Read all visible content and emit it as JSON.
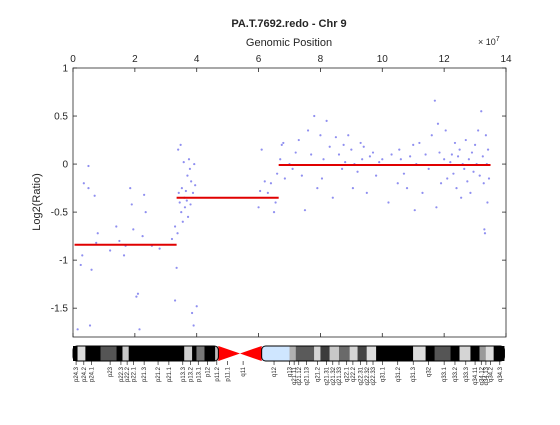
{
  "chart_data": {
    "type": "scatter",
    "title": "PA.T.7692.redo - Chr 9",
    "xlabel": "Genomic Position",
    "ylabel": "Log2(Ratio)",
    "x_exponent_label": "× 10",
    "x_exponent_power": "7",
    "xlim": [
      0,
      14
    ],
    "ylim": [
      -1.8,
      1
    ],
    "xticks": [
      0,
      2,
      4,
      6,
      8,
      10,
      12,
      14
    ],
    "yticks": [
      1,
      0.5,
      0,
      -0.5,
      -1,
      -1.5
    ],
    "ytick_labels": [
      "1",
      "0.5",
      "0",
      "-0.5",
      "-1",
      "-1.5"
    ],
    "colors": {
      "points": "#8f8ff0",
      "segments": "#e00000",
      "axis": "#262626"
    },
    "segments": [
      {
        "x0": 0.05,
        "x1": 3.35,
        "y": -0.84
      },
      {
        "x0": 3.35,
        "x1": 6.65,
        "y": -0.35
      },
      {
        "x0": 6.65,
        "x1": 13.5,
        "y": -0.01
      }
    ],
    "points": [
      [
        0.15,
        -1.72
      ],
      [
        0.25,
        -1.05
      ],
      [
        0.3,
        -0.95
      ],
      [
        0.35,
        -0.2
      ],
      [
        0.5,
        -0.25
      ],
      [
        0.5,
        -0.02
      ],
      [
        0.55,
        -1.68
      ],
      [
        0.6,
        -1.1
      ],
      [
        0.7,
        -0.33
      ],
      [
        0.75,
        -0.82
      ],
      [
        0.8,
        -0.72
      ],
      [
        1.2,
        -0.9
      ],
      [
        1.4,
        -0.65
      ],
      [
        1.5,
        -0.8
      ],
      [
        1.65,
        -0.95
      ],
      [
        1.7,
        -0.85
      ],
      [
        1.85,
        -0.25
      ],
      [
        1.9,
        -0.42
      ],
      [
        1.95,
        -0.68
      ],
      [
        2.05,
        -1.38
      ],
      [
        2.1,
        -1.35
      ],
      [
        2.15,
        -1.72
      ],
      [
        2.25,
        -0.75
      ],
      [
        2.3,
        -0.32
      ],
      [
        2.35,
        -0.5
      ],
      [
        2.55,
        -0.85
      ],
      [
        2.8,
        -0.88
      ],
      [
        3.2,
        -0.78
      ],
      [
        3.3,
        -1.42
      ],
      [
        3.3,
        -0.65
      ],
      [
        3.35,
        -1.08
      ],
      [
        3.38,
        -0.72
      ],
      [
        3.4,
        0.15
      ],
      [
        3.42,
        -0.3
      ],
      [
        3.45,
        -0.4
      ],
      [
        3.48,
        0.2
      ],
      [
        3.5,
        -0.5
      ],
      [
        3.52,
        -0.25
      ],
      [
        3.55,
        -0.6
      ],
      [
        3.58,
        0.02
      ],
      [
        3.6,
        -0.35
      ],
      [
        3.62,
        -0.45
      ],
      [
        3.65,
        -0.28
      ],
      [
        3.68,
        -0.38
      ],
      [
        3.7,
        -0.12
      ],
      [
        3.72,
        -0.55
      ],
      [
        3.75,
        0.05
      ],
      [
        3.78,
        -0.05
      ],
      [
        3.8,
        -0.42
      ],
      [
        3.82,
        -0.18
      ],
      [
        3.85,
        -1.55
      ],
      [
        3.88,
        -0.3
      ],
      [
        3.9,
        -1.68
      ],
      [
        3.92,
        0.0
      ],
      [
        3.95,
        -0.22
      ],
      [
        4.0,
        -1.48
      ],
      [
        6.0,
        -0.45
      ],
      [
        6.05,
        -0.28
      ],
      [
        6.1,
        0.15
      ],
      [
        6.2,
        -0.18
      ],
      [
        6.3,
        -0.3
      ],
      [
        6.4,
        -0.2
      ],
      [
        6.5,
        -0.5
      ],
      [
        6.55,
        -0.4
      ],
      [
        6.6,
        -0.1
      ],
      [
        6.7,
        0.05
      ],
      [
        6.75,
        0.2
      ],
      [
        6.8,
        0.22
      ],
      [
        6.85,
        -0.15
      ],
      [
        7.0,
        0.0
      ],
      [
        7.1,
        -0.05
      ],
      [
        7.2,
        0.12
      ],
      [
        7.3,
        0.25
      ],
      [
        7.4,
        -0.12
      ],
      [
        7.5,
        -0.48
      ],
      [
        7.6,
        0.35
      ],
      [
        7.7,
        0.1
      ],
      [
        7.8,
        0.5
      ],
      [
        7.9,
        -0.25
      ],
      [
        8.0,
        0.3
      ],
      [
        8.05,
        -0.15
      ],
      [
        8.1,
        0.05
      ],
      [
        8.2,
        0.45
      ],
      [
        8.3,
        0.18
      ],
      [
        8.4,
        -0.35
      ],
      [
        8.5,
        0.28
      ],
      [
        8.6,
        0.1
      ],
      [
        8.7,
        -0.05
      ],
      [
        8.75,
        0.2
      ],
      [
        8.8,
        0.02
      ],
      [
        8.9,
        0.3
      ],
      [
        9.0,
        0.15
      ],
      [
        9.05,
        -0.25
      ],
      [
        9.1,
        0.0
      ],
      [
        9.2,
        -0.08
      ],
      [
        9.3,
        0.22
      ],
      [
        9.35,
        0.05
      ],
      [
        9.4,
        0.18
      ],
      [
        9.5,
        -0.3
      ],
      [
        9.6,
        0.08
      ],
      [
        9.7,
        0.12
      ],
      [
        9.8,
        -0.12
      ],
      [
        9.9,
        0.02
      ],
      [
        10.0,
        0.05
      ],
      [
        10.2,
        -0.4
      ],
      [
        10.3,
        0.1
      ],
      [
        10.5,
        -0.2
      ],
      [
        10.55,
        0.15
      ],
      [
        10.6,
        0.05
      ],
      [
        10.7,
        -0.1
      ],
      [
        10.8,
        -0.25
      ],
      [
        10.9,
        0.08
      ],
      [
        11.0,
        0.2
      ],
      [
        11.05,
        -0.48
      ],
      [
        11.1,
        0.0
      ],
      [
        11.2,
        0.22
      ],
      [
        11.3,
        -0.3
      ],
      [
        11.4,
        0.1
      ],
      [
        11.5,
        -0.05
      ],
      [
        11.6,
        0.3
      ],
      [
        11.7,
        0.66
      ],
      [
        11.75,
        -0.45
      ],
      [
        11.8,
        0.42
      ],
      [
        11.85,
        0.12
      ],
      [
        11.9,
        -0.2
      ],
      [
        12.0,
        0.05
      ],
      [
        12.05,
        0.35
      ],
      [
        12.1,
        -0.15
      ],
      [
        12.2,
        0.02
      ],
      [
        12.25,
        0.1
      ],
      [
        12.3,
        -0.1
      ],
      [
        12.35,
        0.22
      ],
      [
        12.4,
        -0.25
      ],
      [
        12.45,
        0.08
      ],
      [
        12.5,
        0.15
      ],
      [
        12.55,
        -0.35
      ],
      [
        12.6,
        0.0
      ],
      [
        12.65,
        -0.05
      ],
      [
        12.7,
        0.25
      ],
      [
        12.75,
        -0.18
      ],
      [
        12.8,
        0.05
      ],
      [
        12.85,
        -0.3
      ],
      [
        12.9,
        0.12
      ],
      [
        12.95,
        -0.08
      ],
      [
        13.0,
        0.2
      ],
      [
        13.05,
        0.0
      ],
      [
        13.1,
        0.35
      ],
      [
        13.15,
        -0.12
      ],
      [
        13.2,
        0.55
      ],
      [
        13.25,
        0.08
      ],
      [
        13.28,
        -0.2
      ],
      [
        13.3,
        -0.68
      ],
      [
        13.32,
        -0.72
      ],
      [
        13.35,
        0.3
      ],
      [
        13.38,
        0.0
      ],
      [
        13.4,
        -0.4
      ],
      [
        13.42,
        0.15
      ],
      [
        13.45,
        -0.15
      ]
    ],
    "ideogram": {
      "bands": [
        {
          "x0": 0.0,
          "x1": 0.15,
          "color": "#000000"
        },
        {
          "x0": 0.15,
          "x1": 0.4,
          "color": "#dcdcdc"
        },
        {
          "x0": 0.4,
          "x1": 0.9,
          "color": "#000000"
        },
        {
          "x0": 0.9,
          "x1": 1.4,
          "color": "#555555"
        },
        {
          "x0": 1.4,
          "x1": 1.6,
          "color": "#000000"
        },
        {
          "x0": 1.6,
          "x1": 1.8,
          "color": "#c8c8c8"
        },
        {
          "x0": 1.8,
          "x1": 3.6,
          "color": "#000000"
        },
        {
          "x0": 3.6,
          "x1": 3.85,
          "color": "#d0d0d0"
        },
        {
          "x0": 3.85,
          "x1": 4.0,
          "color": "#000000"
        },
        {
          "x0": 4.0,
          "x1": 4.25,
          "color": "#777777"
        },
        {
          "x0": 4.25,
          "x1": 4.6,
          "color": "#000000"
        },
        {
          "x0": 4.6,
          "x1": 4.7,
          "color": "#bcbcbc"
        },
        {
          "x0": 6.1,
          "x1": 7.0,
          "color": "#cfe6ff"
        },
        {
          "x0": 7.0,
          "x1": 7.2,
          "color": "#b0b0b0"
        },
        {
          "x0": 7.2,
          "x1": 7.8,
          "color": "#5a5a5a"
        },
        {
          "x0": 7.8,
          "x1": 8.0,
          "color": "#d5d5d5"
        },
        {
          "x0": 8.0,
          "x1": 8.3,
          "color": "#3c3c3c"
        },
        {
          "x0": 8.3,
          "x1": 8.6,
          "color": "#c8c8c8"
        },
        {
          "x0": 8.6,
          "x1": 8.95,
          "color": "#6a6a6a"
        },
        {
          "x0": 8.95,
          "x1": 9.2,
          "color": "#d5d5d5"
        },
        {
          "x0": 9.2,
          "x1": 9.5,
          "color": "#444444"
        },
        {
          "x0": 9.5,
          "x1": 9.8,
          "color": "#dddddd"
        },
        {
          "x0": 9.8,
          "x1": 11.0,
          "color": "#000000"
        },
        {
          "x0": 11.0,
          "x1": 11.4,
          "color": "#dddddd"
        },
        {
          "x0": 11.4,
          "x1": 11.7,
          "color": "#000000"
        },
        {
          "x0": 11.7,
          "x1": 12.2,
          "color": "#555555"
        },
        {
          "x0": 12.2,
          "x1": 12.5,
          "color": "#000000"
        },
        {
          "x0": 12.5,
          "x1": 12.85,
          "color": "#d5d5d5"
        },
        {
          "x0": 12.85,
          "x1": 13.15,
          "color": "#000000"
        },
        {
          "x0": 13.15,
          "x1": 13.35,
          "color": "#9a9a9a"
        },
        {
          "x0": 13.35,
          "x1": 13.6,
          "color": "#dddddd"
        },
        {
          "x0": 13.6,
          "x1": 13.95,
          "color": "#000000"
        }
      ],
      "centromere": {
        "x0": 4.7,
        "x1": 6.1,
        "color": "#ff0000"
      },
      "labels": [
        {
          "x": 0.1,
          "text": "p24.3"
        },
        {
          "x": 0.35,
          "text": "p24.2"
        },
        {
          "x": 0.6,
          "text": "p24.1"
        },
        {
          "x": 1.2,
          "text": "p23"
        },
        {
          "x": 1.55,
          "text": "p22.3"
        },
        {
          "x": 1.75,
          "text": "p22.2"
        },
        {
          "x": 1.95,
          "text": "p22.1"
        },
        {
          "x": 2.3,
          "text": "p21.3"
        },
        {
          "x": 2.75,
          "text": "p21.2"
        },
        {
          "x": 3.1,
          "text": "p21.1"
        },
        {
          "x": 3.55,
          "text": "p13.3"
        },
        {
          "x": 3.8,
          "text": "p13.2"
        },
        {
          "x": 4.05,
          "text": "p13.1"
        },
        {
          "x": 4.35,
          "text": "p12"
        },
        {
          "x": 4.65,
          "text": "p11.2"
        },
        {
          "x": 5.0,
          "text": "p11.1"
        },
        {
          "x": 5.5,
          "text": "q11"
        },
        {
          "x": 6.5,
          "text": "q12"
        },
        {
          "x": 7.0,
          "text": "q13"
        },
        {
          "x": 7.15,
          "text": "q21.11"
        },
        {
          "x": 7.3,
          "text": "q21.12"
        },
        {
          "x": 7.55,
          "text": "q21.13"
        },
        {
          "x": 7.9,
          "text": "q21.2"
        },
        {
          "x": 8.2,
          "text": "q21.31"
        },
        {
          "x": 8.4,
          "text": "q21.32"
        },
        {
          "x": 8.6,
          "text": "q21.33"
        },
        {
          "x": 8.85,
          "text": "q22.1"
        },
        {
          "x": 9.05,
          "text": "q22.2"
        },
        {
          "x": 9.3,
          "text": "q22.31"
        },
        {
          "x": 9.5,
          "text": "q22.32"
        },
        {
          "x": 9.7,
          "text": "q22.33"
        },
        {
          "x": 10.0,
          "text": "q31.1"
        },
        {
          "x": 10.5,
          "text": "q31.2"
        },
        {
          "x": 11.0,
          "text": "q31.3"
        },
        {
          "x": 11.5,
          "text": "q32"
        },
        {
          "x": 12.0,
          "text": "q33.1"
        },
        {
          "x": 12.35,
          "text": "q33.2"
        },
        {
          "x": 12.7,
          "text": "q33.3"
        },
        {
          "x": 13.0,
          "text": "q34.11"
        },
        {
          "x": 13.2,
          "text": "q34.12"
        },
        {
          "x": 13.35,
          "text": "q34.13"
        },
        {
          "x": 13.5,
          "text": "q34.2"
        },
        {
          "x": 13.8,
          "text": "q34.3"
        }
      ]
    }
  }
}
